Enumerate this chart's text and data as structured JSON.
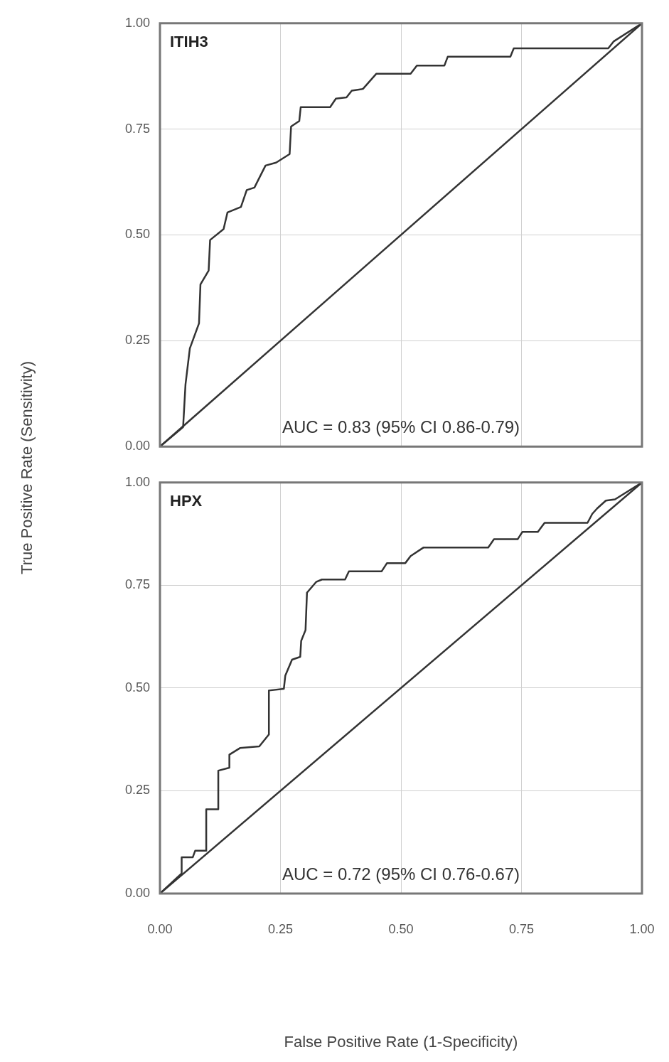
{
  "chart_data": [
    {
      "type": "line",
      "title": "ITIH3",
      "ylabel": "True Positive Rate (Sensitivity)",
      "annotations": [
        "AUC = 0.83 (95% CI 0.86-0.79)"
      ],
      "xlim": [
        0,
        1
      ],
      "ylim": [
        0,
        1
      ],
      "xticks": [
        0,
        0.25,
        0.5,
        0.75,
        1
      ],
      "yticks": [
        {
          "value": 0,
          "label": "0.00"
        },
        {
          "value": 0.25,
          "label": "0.25"
        },
        {
          "value": 0.5,
          "label": "0.50"
        },
        {
          "value": 0.75,
          "label": "0.75"
        },
        {
          "value": 1,
          "label": "1.00"
        }
      ],
      "tick_labels": "y",
      "grid": true,
      "legend": false,
      "marker": "none",
      "line_style": "solid",
      "series": [
        {
          "color": "#333333",
          "x": [
            0,
            0.048,
            0.053,
            0.062,
            0.081,
            0.084,
            0.101,
            0.104,
            0.132,
            0.14,
            0.168,
            0.18,
            0.196,
            0.219,
            0.241,
            0.269,
            0.272,
            0.289,
            0.292,
            0.353,
            0.365,
            0.387,
            0.398,
            0.421,
            0.449,
            0.52,
            0.533,
            0.59,
            0.597,
            0.727,
            0.734,
            0.93,
            0.941,
            1
          ],
          "values": [
            0,
            0.046,
            0.147,
            0.232,
            0.291,
            0.383,
            0.416,
            0.488,
            0.514,
            0.553,
            0.566,
            0.606,
            0.612,
            0.664,
            0.671,
            0.691,
            0.756,
            0.769,
            0.802,
            0.802,
            0.822,
            0.825,
            0.841,
            0.845,
            0.881,
            0.881,
            0.9,
            0.9,
            0.921,
            0.921,
            0.941,
            0.941,
            0.957,
            1
          ]
        },
        {
          "color": "#333333",
          "x": [
            0,
            1
          ],
          "values": [
            0,
            1
          ]
        }
      ]
    },
    {
      "type": "line",
      "title": "HPX",
      "xlabel": "False Positive Rate (1-Specificity)",
      "annotations": [
        "AUC = 0.72 (95% CI 0.76-0.67)"
      ],
      "xlim": [
        0,
        1
      ],
      "ylim": [
        0,
        1
      ],
      "xticks": [
        {
          "value": 0,
          "label": "0.00"
        },
        {
          "value": 0.25,
          "label": "0.25"
        },
        {
          "value": 0.5,
          "label": "0.50"
        },
        {
          "value": 0.75,
          "label": "0.75"
        },
        {
          "value": 1,
          "label": "1.00"
        }
      ],
      "yticks": [
        {
          "value": 0,
          "label": "0.00"
        },
        {
          "value": 0.25,
          "label": "0.25"
        },
        {
          "value": 0.5,
          "label": "0.50"
        },
        {
          "value": 0.75,
          "label": "0.75"
        },
        {
          "value": 1,
          "label": "1.00"
        }
      ],
      "grid": true,
      "legend": false,
      "marker": "none",
      "line_style": "solid",
      "series": [
        {
          "color": "#333333",
          "x": [
            0,
            0.045,
            0.045,
            0.068,
            0.073,
            0.096,
            0.096,
            0.121,
            0.121,
            0.144,
            0.144,
            0.166,
            0.206,
            0.226,
            0.226,
            0.257,
            0.26,
            0.274,
            0.291,
            0.293,
            0.302,
            0.305,
            0.324,
            0.336,
            0.384,
            0.392,
            0.46,
            0.471,
            0.509,
            0.52,
            0.547,
            0.681,
            0.693,
            0.742,
            0.752,
            0.784,
            0.798,
            0.887,
            0.897,
            0.907,
            0.925,
            0.944,
            1
          ],
          "values": [
            0,
            0.049,
            0.088,
            0.088,
            0.104,
            0.104,
            0.205,
            0.205,
            0.299,
            0.306,
            0.338,
            0.354,
            0.358,
            0.387,
            0.494,
            0.498,
            0.53,
            0.569,
            0.576,
            0.615,
            0.641,
            0.732,
            0.758,
            0.764,
            0.764,
            0.784,
            0.784,
            0.804,
            0.804,
            0.821,
            0.842,
            0.842,
            0.862,
            0.862,
            0.88,
            0.88,
            0.902,
            0.902,
            0.924,
            0.937,
            0.956,
            0.959,
            1
          ]
        },
        {
          "color": "#333333",
          "x": [
            0,
            1
          ],
          "values": [
            0,
            1
          ]
        }
      ]
    }
  ]
}
